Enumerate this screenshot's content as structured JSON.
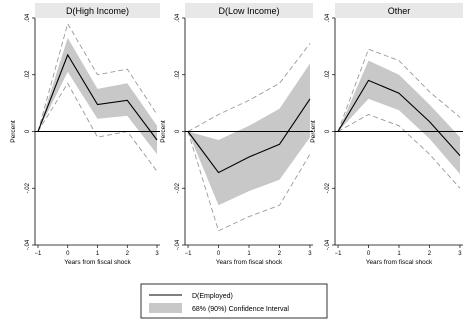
{
  "chart_data": [
    {
      "type": "line",
      "title": "D(High Income)",
      "xlabel": "Years from fiscal shock",
      "ylabel": "Percent",
      "x": [
        -1,
        0,
        1,
        2,
        3
      ],
      "xticks": [
        "−1",
        "0",
        "1",
        "2",
        "3"
      ],
      "yticks": [
        ".04",
        ".02",
        "0",
        "-.02",
        "-.04"
      ],
      "xlim": [
        -1.1,
        3.1
      ],
      "ylim": [
        -0.04,
        0.04
      ],
      "grid": false,
      "series": [
        {
          "name": "D(Employed)",
          "values": [
            0,
            0.027,
            0.0095,
            0.011,
            -0.003
          ]
        },
        {
          "name": "68% Confidence Interval",
          "lower": [
            0,
            0.021,
            0.0045,
            0.0055,
            -0.008
          ],
          "upper": [
            0,
            0.033,
            0.015,
            0.017,
            0.002
          ]
        },
        {
          "name": "90% Confidence Interval",
          "lower": [
            0,
            0.017,
            -0.002,
            0.0,
            -0.014
          ],
          "upper": [
            0,
            0.038,
            0.02,
            0.022,
            0.006
          ]
        }
      ]
    },
    {
      "type": "line",
      "title": "D(Low Income)",
      "xlabel": "Years from fiscal shock",
      "ylabel": "Percent",
      "x": [
        -1,
        0,
        1,
        2,
        3
      ],
      "xticks": [
        "−1",
        "0",
        "1",
        "2",
        "3"
      ],
      "yticks": [
        ".04",
        ".02",
        "0",
        "-.02",
        "-.04"
      ],
      "xlim": [
        -1.1,
        3.1
      ],
      "ylim": [
        -0.04,
        0.04
      ],
      "grid": false,
      "series": [
        {
          "name": "D(Employed)",
          "values": [
            0,
            -0.0145,
            -0.009,
            -0.0045,
            0.0115
          ]
        },
        {
          "name": "68% Confidence Interval",
          "lower": [
            0,
            -0.026,
            -0.021,
            -0.017,
            -0.002
          ],
          "upper": [
            0,
            -0.003,
            0.002,
            0.008,
            0.024
          ]
        },
        {
          "name": "90% Confidence Interval",
          "lower": [
            0,
            -0.035,
            -0.03,
            -0.026,
            -0.008
          ],
          "upper": [
            0,
            0.006,
            0.011,
            0.017,
            0.031
          ]
        }
      ]
    },
    {
      "type": "line",
      "title": "Other",
      "xlabel": "Years from fiscal shock",
      "ylabel": "Percent",
      "x": [
        -1,
        0,
        1,
        2,
        3
      ],
      "xticks": [
        "−1",
        "0",
        "1",
        "2",
        "3"
      ],
      "yticks": [
        ".04",
        ".02",
        "0",
        "-.02",
        "-.04"
      ],
      "xlim": [
        -1.1,
        3.1
      ],
      "ylim": [
        -0.04,
        0.04
      ],
      "grid": false,
      "series": [
        {
          "name": "D(Employed)",
          "values": [
            0,
            0.018,
            0.0135,
            0.0035,
            -0.0085
          ]
        },
        {
          "name": "68% Confidence Interval",
          "lower": [
            0,
            0.0115,
            0.0075,
            -0.0025,
            -0.015
          ],
          "upper": [
            0,
            0.025,
            0.02,
            0.0095,
            -0.002
          ]
        },
        {
          "name": "90% Confidence Interval",
          "lower": [
            0,
            0.006,
            0.002,
            -0.008,
            -0.02
          ],
          "upper": [
            0,
            0.029,
            0.025,
            0.014,
            0.005
          ]
        }
      ]
    }
  ],
  "legend": {
    "line_label": "D(Employed)",
    "band_label": "68% (90%) Confidence Interval",
    "colors": {
      "band": "#c8c8c8",
      "line": "#000000",
      "ci90": "#9a9a9a",
      "zero": "#000000",
      "frame": "#000000"
    }
  }
}
